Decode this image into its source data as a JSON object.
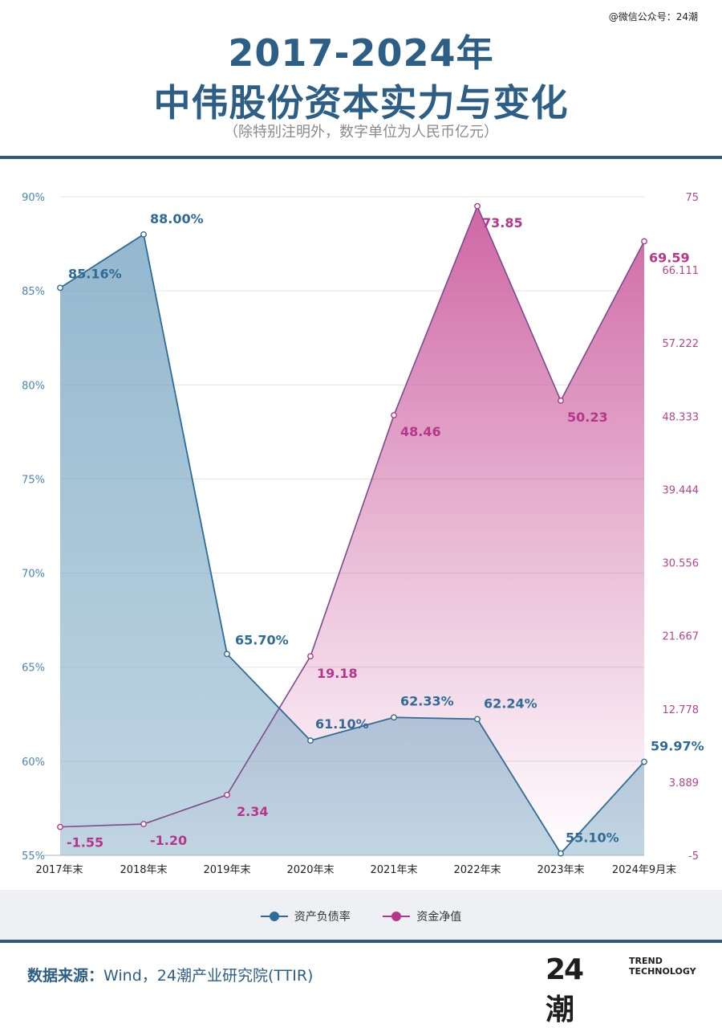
{
  "watermark": "@微信公众号：24潮",
  "title_line1": "2017-2024年",
  "title_line2": "中伟股份资本实力与变化",
  "subtitle": "（除特别注明外，数字单位为人民币亿元）",
  "source_label": "数据来源：",
  "source_text": "Wind，24潮产业研究院(TTIR)",
  "logo_main": "24潮",
  "logo_sub": "TREND\nTECHNOLOGY",
  "colors": {
    "blue": "#2f6c95",
    "blue_fill": "#7aa7c3",
    "magenta": "#b5368a",
    "purple_line": "#7c4a8d",
    "magenta_fill": "#cc5f9f",
    "left_tick": "#4a86b3",
    "right_tick": "#b5458c"
  },
  "chart_data": {
    "type": "line",
    "categories": [
      "2017年末",
      "2018年末",
      "2019年末",
      "2020年末",
      "2021年末",
      "2022年末",
      "2023年末",
      "2024年9月末"
    ],
    "y_left": {
      "ticks": [
        "55%",
        "60%",
        "65%",
        "70%",
        "75%",
        "80%",
        "85%",
        "90%"
      ],
      "range": [
        55,
        90
      ]
    },
    "y_right": {
      "ticks": [
        "-5",
        "3.889",
        "12.778",
        "21.667",
        "30.556",
        "39.444",
        "48.333",
        "57.222",
        "66.111",
        "75"
      ],
      "range": [
        -5,
        75
      ]
    },
    "grid": true,
    "legend_position": "bottom",
    "series": [
      {
        "name": "资产负债率",
        "axis": "left",
        "values": [
          85.16,
          88.0,
          65.7,
          61.1,
          62.33,
          62.24,
          55.1,
          59.97
        ],
        "labels": [
          "85.16%",
          "88.00%",
          "65.70%",
          "61.10%",
          "62.33%",
          "62.24%",
          "55.10%",
          "59.97%"
        ]
      },
      {
        "name": "资金净值",
        "axis": "right",
        "values": [
          -1.55,
          -1.2,
          2.34,
          19.18,
          48.46,
          73.85,
          50.23,
          69.59
        ],
        "labels": [
          "-1.55",
          "-1.20",
          "2.34",
          "19.18",
          "48.46",
          "73.85",
          "50.23",
          "69.59"
        ]
      }
    ]
  }
}
